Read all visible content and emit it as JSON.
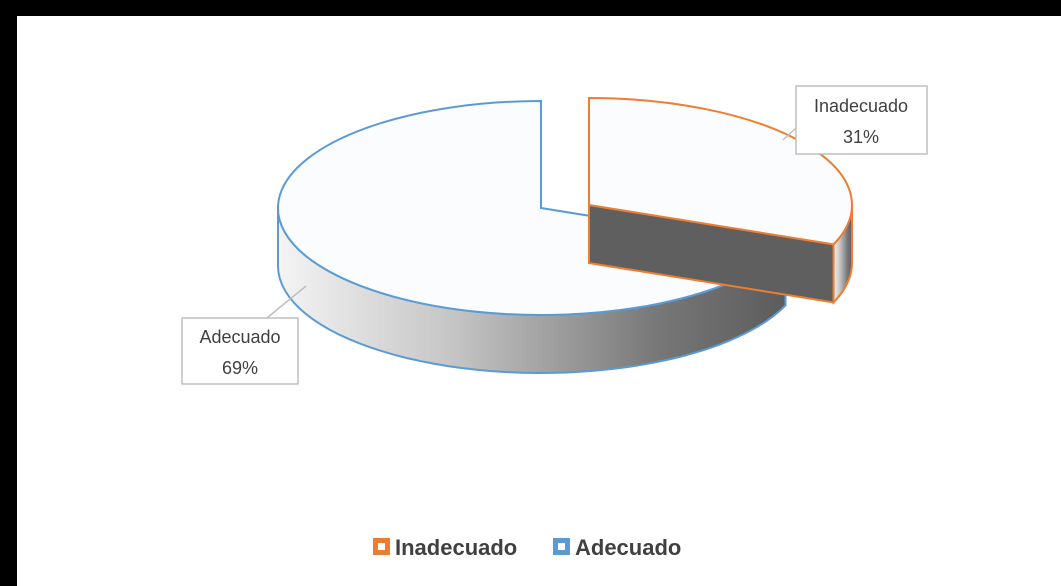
{
  "chart_data": {
    "type": "pie",
    "style": "3d-exploded",
    "categories": [
      "Inadecuado",
      "Adecuado"
    ],
    "values": [
      31,
      69
    ],
    "data_labels": [
      {
        "category": "Inadecuado",
        "value": "31%"
      },
      {
        "category": "Adecuado",
        "value": "69%"
      }
    ],
    "legend": {
      "position": "bottom",
      "items": [
        {
          "label": "Inadecuado",
          "color": "#ED7D31"
        },
        {
          "label": "Adecuado",
          "color": "#5B9BD5"
        }
      ]
    },
    "colors": {
      "inadecuado_outline": "#ED7D31",
      "adecuado_outline": "#5B9BD5",
      "slice_fill": "#FBFCFE",
      "frame": "#000000"
    }
  }
}
